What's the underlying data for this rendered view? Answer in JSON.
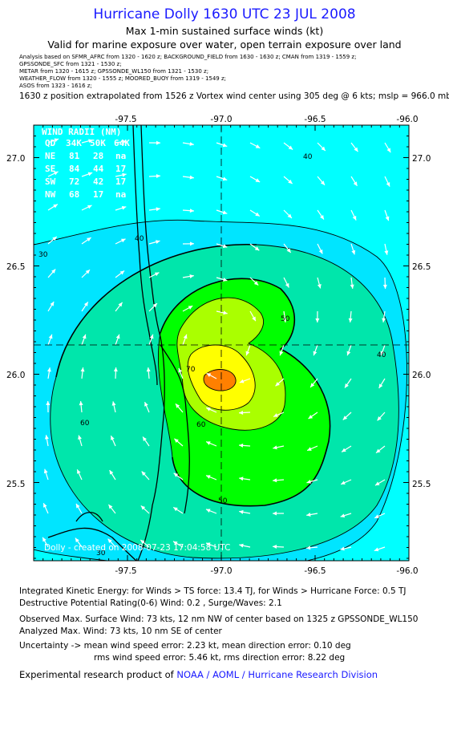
{
  "title": "Hurricane Dolly 1630 UTC 23 JUL 2008",
  "subtitle1": "Max 1-min sustained surface winds (kt)",
  "subtitle2": "Valid for marine exposure over water, open terrain exposure over land",
  "sources": [
    "Analysis based on  SFMR_AFRC from 1320 - 1620 z;  BACKGROUND_FIELD from 1630 - 1630 z;  CMAN from 1319 - 1559 z;",
    "GPSSONDE_SFC from 1321 - 1530 z;",
    "METAR from 1320 - 1615 z;  GPSSONDE_WL150 from 1321 - 1530 z;",
    "WEATHER_FLOW from 1320 - 1555 z;  MOORED_BUOY from 1319 - 1549 z;",
    "ASOS from 1323 - 1616 z;"
  ],
  "position_note": "1630 z position extrapolated from 1526 z Vortex wind center using 305 deg @ 6 kts; mslp = 966.0 mb",
  "map": {
    "lon_ticks": [
      "-97.5",
      "-97.0",
      "-96.5",
      "-96.0"
    ],
    "lat_ticks": [
      "27.0",
      "26.5",
      "26.0",
      "25.5"
    ],
    "contour_labels": [
      "40",
      "40",
      "40",
      "30",
      "50",
      "50",
      "60",
      "60",
      "70",
      "30"
    ],
    "wind_radii": {
      "title": "WIND RADII (NM)",
      "header": [
        "QD",
        "34K",
        "50K",
        "64K"
      ],
      "rows": [
        [
          "NE",
          "81",
          "28",
          "na"
        ],
        [
          "SE",
          "84",
          "44",
          "17"
        ],
        [
          "SW",
          "72",
          "42",
          "17"
        ],
        [
          "NW",
          "68",
          "17",
          "na"
        ]
      ]
    },
    "credit": "Dolly  - created on 2008-07-23 17:04:58 UTC",
    "center_lon": -97.0,
    "center_lat": 26.15,
    "colors": {
      "bg": "#00ffff",
      "c30": "#00e5ff",
      "c40": "#00e6ab",
      "c50": "#00ff00",
      "c60": "#aaff00",
      "c70": "#ffff00",
      "c80": "#ff8000",
      "contour": "#000000",
      "land_line": "#000000",
      "arrow": "#ffffff"
    }
  },
  "footer": {
    "ike": "Integrated Kinetic Energy:  for Winds > TS force: 13.4 TJ,  for Winds > Hurricane Force: 0.5 TJ",
    "dpr": "Destructive Potential Rating(0-6)   Wind: 0.2 , Surge/Waves: 2.1",
    "obs": "Observed Max. Surface Wind: 73 kts, 12 nm NW of center based on 1325 z GPSSONDE_WL150",
    "ana": "Analyzed Max. Wind: 73 kts, 10 nm SE of center",
    "unc1": "Uncertainty -> mean wind speed error: 2.23 kt,   mean direction error: 0.10 deg",
    "unc2": "rms wind speed error: 5.46 kt,   rms direction error: 8.22 deg",
    "credit_prefix": "Experimental research product of ",
    "credit_org": "NOAA / AOML / Hurricane Research Division"
  }
}
